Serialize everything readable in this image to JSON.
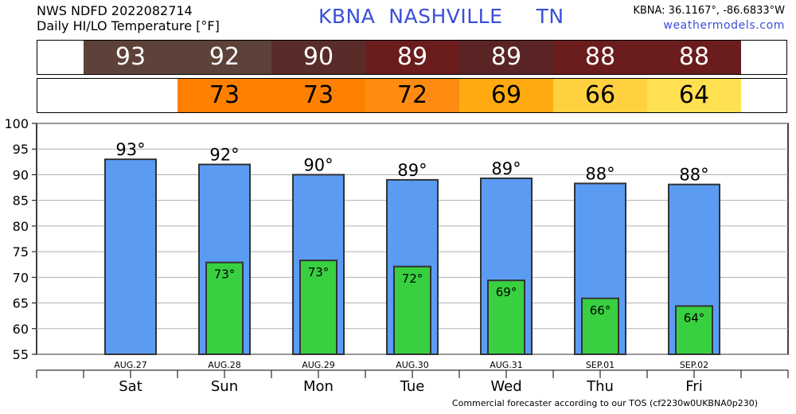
{
  "header": {
    "line1": "NWS NDFD 2022082714",
    "line2": "Daily HI/LO Temperature [°F]",
    "station_code": "KBNA",
    "city": "NASHVILLE",
    "state": "TN",
    "coords": "KBNA: 36.1167°, -86.6833°W",
    "site": "weathermodels.com"
  },
  "hi_strip": {
    "values": [
      "93",
      "92",
      "90",
      "89",
      "89",
      "88",
      "88"
    ],
    "colors": [
      "#5c4238",
      "#5c4238",
      "#5a2c29",
      "#6b1c1c",
      "#5a2424",
      "#6b1c1c",
      "#6b1c1c"
    ]
  },
  "lo_strip": {
    "values": [
      "",
      "73",
      "73",
      "72",
      "69",
      "66",
      "64"
    ],
    "colors": [
      "#ffffff",
      "#ff8000",
      "#ff8000",
      "#ff8c10",
      "#ffaa10",
      "#ffd040",
      "#ffe050"
    ]
  },
  "chart_data": {
    "type": "bar",
    "ylim": [
      55,
      100
    ],
    "yticks": [
      55,
      60,
      65,
      70,
      75,
      80,
      85,
      90,
      95,
      100
    ],
    "categories": [
      "AUG.27",
      "AUG.28",
      "AUG.29",
      "AUG.30",
      "AUG.31",
      "SEP.01",
      "SEP.02"
    ],
    "days": [
      "Sat",
      "Sun",
      "Mon",
      "Tue",
      "Wed",
      "Thu",
      "Fri"
    ],
    "series": [
      {
        "values": [
          93,
          92,
          90,
          89,
          89.3,
          88.3,
          88.1
        ],
        "labels": [
          "93°",
          "92°",
          "90°",
          "89°",
          "89°",
          "88°",
          "88°"
        ],
        "color": "#5b9cf2"
      },
      {
        "values": [
          null,
          72.9,
          73.3,
          72.1,
          69.4,
          65.9,
          64.4
        ],
        "labels": [
          "",
          "73°",
          "73°",
          "72°",
          "69°",
          "66°",
          "64°"
        ],
        "color": "#38d040"
      }
    ],
    "grid": true,
    "grid_axis": "y"
  },
  "footer": "Commercial forecaster according to our TOS (cf2230w0UKBNA0p230)"
}
